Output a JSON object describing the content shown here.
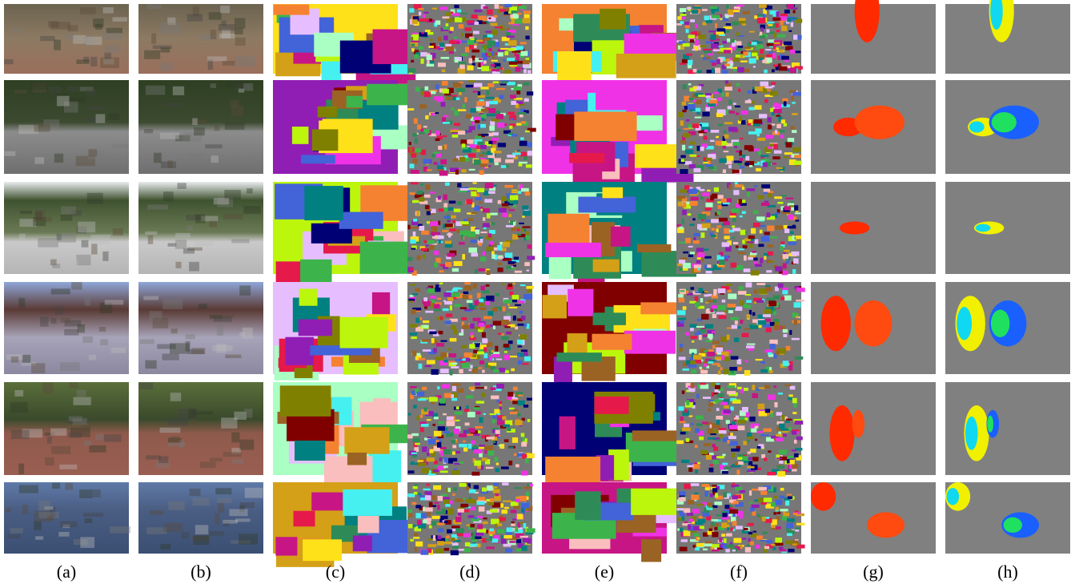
{
  "figure": {
    "panel_labels": [
      "(a)",
      "(b)",
      "(c)",
      "(d)",
      "(e)",
      "(f)",
      "(g)",
      "(h)"
    ]
  }
}
